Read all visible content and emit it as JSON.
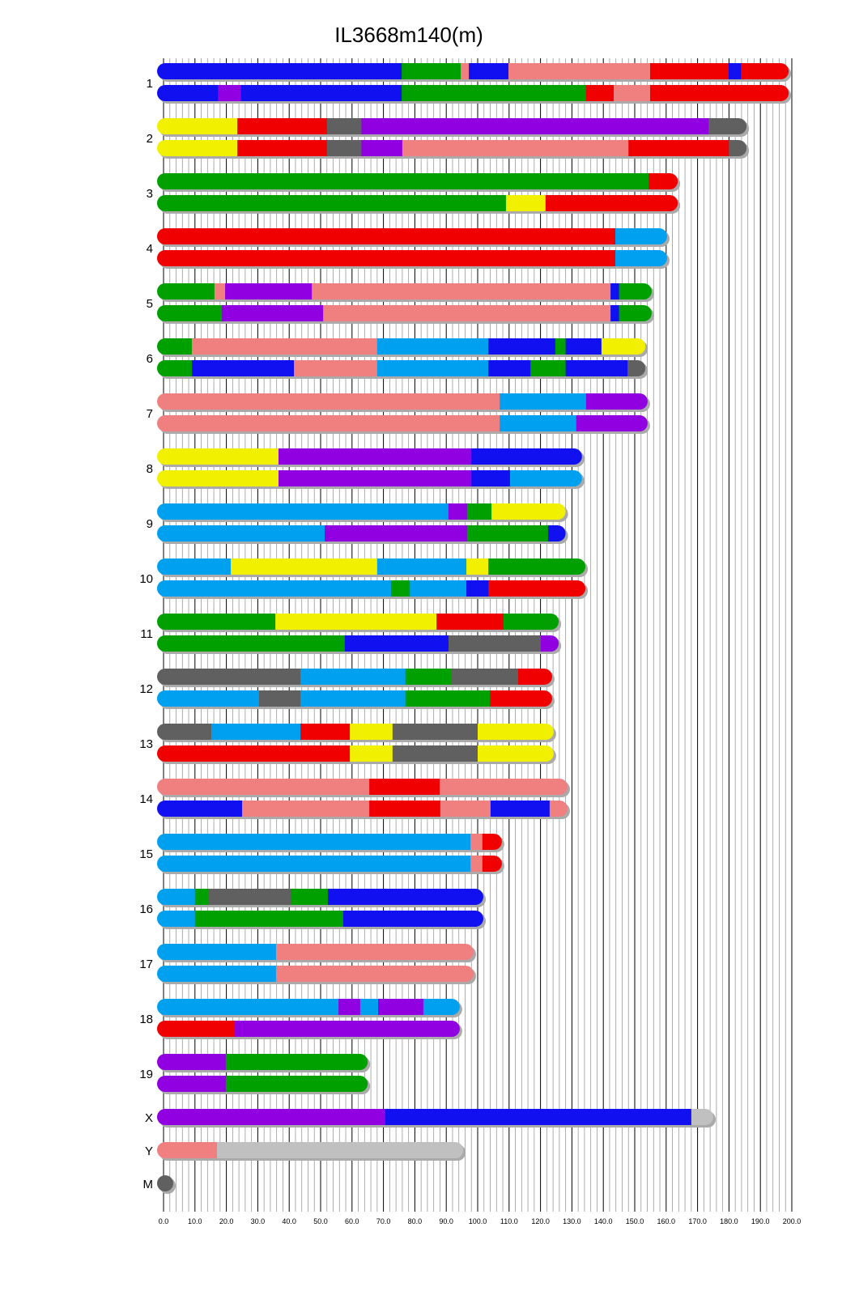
{
  "title": "IL3668m140(m)",
  "chart_data": {
    "type": "chromosome-painting",
    "title": "IL3668m140(m)",
    "xlabel": "",
    "ylabel": "",
    "xlim": [
      0,
      200
    ],
    "x_ticks": [
      "0.0",
      "10.0",
      "20.0",
      "30.0",
      "40.0",
      "50.0",
      "60.0",
      "70.0",
      "80.0",
      "90.0",
      "100.0",
      "110.0",
      "120.0",
      "130.0",
      "140.0",
      "150.0",
      "160.0",
      "170.0",
      "180.0",
      "190.0",
      "200.0"
    ],
    "colors": {
      "blue": "#1010f0",
      "green": "#00a000",
      "salmon": "#f08080",
      "red": "#f00000",
      "purple": "#9000e0",
      "gray": "#606060",
      "yellow": "#f0f000",
      "sky": "#00a0f0",
      "lightgray": "#c0c0c0"
    },
    "chromosomes": [
      {
        "name": "1",
        "rows": [
          [
            [
              75.8,
              "blue"
            ],
            [
              94.6,
              "green"
            ],
            [
              97.2,
              "salmon"
            ],
            [
              109.8,
              "blue"
            ],
            [
              154.9,
              "salmon"
            ],
            [
              179.9,
              "red"
            ],
            [
              183.8,
              "blue"
            ],
            [
              199,
              "red"
            ]
          ],
          [
            [
              17.3,
              "blue"
            ],
            [
              24.7,
              "purple"
            ],
            [
              75.8,
              "blue"
            ],
            [
              134.5,
              "green"
            ],
            [
              143.3,
              "red"
            ],
            [
              154.9,
              "salmon"
            ],
            [
              199,
              "red"
            ]
          ]
        ]
      },
      {
        "name": "2",
        "rows": [
          [
            [
              23.5,
              "yellow"
            ],
            [
              52,
              "red"
            ],
            [
              63,
              "gray"
            ],
            [
              173.5,
              "purple"
            ],
            [
              185.6,
              "gray"
            ]
          ],
          [
            [
              23.5,
              "yellow"
            ],
            [
              52,
              "red"
            ],
            [
              63,
              "gray"
            ],
            [
              76,
              "purple"
            ],
            [
              148,
              "salmon"
            ],
            [
              180,
              "red"
            ],
            [
              185.6,
              "gray"
            ]
          ]
        ]
      },
      {
        "name": "3",
        "rows": [
          [
            [
              154.4,
              "green"
            ],
            [
              163.7,
              "red"
            ]
          ],
          [
            [
              109,
              "green"
            ],
            [
              121.6,
              "yellow"
            ],
            [
              163.7,
              "red"
            ]
          ]
        ]
      },
      {
        "name": "4",
        "rows": [
          [
            [
              143.8,
              "red"
            ],
            [
              160.3,
              "sky"
            ]
          ],
          [
            [
              143.8,
              "red"
            ],
            [
              160.3,
              "sky"
            ]
          ]
        ]
      },
      {
        "name": "5",
        "rows": [
          [
            [
              16.2,
              "green"
            ],
            [
              19.6,
              "salmon"
            ],
            [
              47.2,
              "purple"
            ],
            [
              142.3,
              "salmon"
            ],
            [
              145,
              "blue"
            ],
            [
              155.4,
              "green"
            ]
          ],
          [
            [
              18.6,
              "green"
            ],
            [
              50.8,
              "purple"
            ],
            [
              142.3,
              "salmon"
            ],
            [
              145,
              "blue"
            ],
            [
              155.4,
              "green"
            ]
          ]
        ]
      },
      {
        "name": "6",
        "rows": [
          [
            [
              9,
              "green"
            ],
            [
              68,
              "salmon"
            ],
            [
              103.4,
              "sky"
            ],
            [
              124.7,
              "blue"
            ],
            [
              128,
              "green"
            ],
            [
              139.4,
              "blue"
            ],
            [
              153.4,
              "yellow"
            ]
          ],
          [
            [
              9,
              "green"
            ],
            [
              41.5,
              "blue"
            ],
            [
              68,
              "salmon"
            ],
            [
              103.4,
              "sky"
            ],
            [
              116.8,
              "blue"
            ],
            [
              128,
              "green"
            ],
            [
              147.7,
              "blue"
            ],
            [
              153.4,
              "gray"
            ]
          ]
        ]
      },
      {
        "name": "7",
        "rows": [
          [
            [
              107,
              "salmon"
            ],
            [
              134.5,
              "sky"
            ],
            [
              154.1,
              "purple"
            ]
          ],
          [
            [
              107,
              "salmon"
            ],
            [
              131.4,
              "sky"
            ],
            [
              154.1,
              "purple"
            ]
          ]
        ]
      },
      {
        "name": "8",
        "rows": [
          [
            [
              36.6,
              "yellow"
            ],
            [
              98,
              "purple"
            ],
            [
              133.2,
              "blue"
            ]
          ],
          [
            [
              36.6,
              "yellow"
            ],
            [
              98,
              "purple"
            ],
            [
              110.3,
              "blue"
            ],
            [
              133.2,
              "sky"
            ]
          ]
        ]
      },
      {
        "name": "9",
        "rows": [
          [
            [
              90.7,
              "sky"
            ],
            [
              96.6,
              "purple"
            ],
            [
              104.4,
              "green"
            ],
            [
              128,
              "yellow"
            ]
          ],
          [
            [
              51.3,
              "sky"
            ],
            [
              96.6,
              "purple"
            ],
            [
              122.4,
              "green"
            ],
            [
              128,
              "blue"
            ]
          ]
        ]
      },
      {
        "name": "10",
        "rows": [
          [
            [
              21.4,
              "sky"
            ],
            [
              68,
              "yellow"
            ],
            [
              96.4,
              "sky"
            ],
            [
              103.4,
              "yellow"
            ],
            [
              134.3,
              "green"
            ]
          ],
          [
            [
              72.4,
              "sky"
            ],
            [
              78.4,
              "green"
            ],
            [
              96.4,
              "sky"
            ],
            [
              103.4,
              "blue"
            ],
            [
              134.3,
              "red"
            ]
          ]
        ]
      },
      {
        "name": "11",
        "rows": [
          [
            [
              35.6,
              "green"
            ],
            [
              86.9,
              "yellow"
            ],
            [
              108.2,
              "red"
            ],
            [
              125.8,
              "green"
            ]
          ],
          [
            [
              57.7,
              "green"
            ],
            [
              90.7,
              "blue"
            ],
            [
              120.1,
              "gray"
            ],
            [
              125.8,
              "purple"
            ]
          ]
        ]
      },
      {
        "name": "12",
        "rows": [
          [
            [
              43.6,
              "gray"
            ],
            [
              77,
              "sky"
            ],
            [
              91.5,
              "green"
            ],
            [
              112.9,
              "gray"
            ],
            [
              123.7,
              "red"
            ]
          ],
          [
            [
              30.4,
              "sky"
            ],
            [
              43.6,
              "gray"
            ],
            [
              77,
              "sky"
            ],
            [
              103.9,
              "green"
            ],
            [
              123.7,
              "red"
            ]
          ]
        ]
      },
      {
        "name": "13",
        "rows": [
          [
            [
              15.2,
              "gray"
            ],
            [
              43.6,
              "sky"
            ],
            [
              59.3,
              "red"
            ],
            [
              72.9,
              "yellow"
            ],
            [
              100,
              "gray"
            ],
            [
              124.2,
              "yellow"
            ]
          ],
          [
            [
              59.3,
              "red"
            ],
            [
              72.9,
              "yellow"
            ],
            [
              100,
              "gray"
            ],
            [
              124.2,
              "yellow"
            ]
          ]
        ]
      },
      {
        "name": "14",
        "rows": [
          [
            [
              65.5,
              "salmon"
            ],
            [
              87.9,
              "red"
            ],
            [
              128.6,
              "salmon"
            ]
          ],
          [
            [
              25,
              "blue"
            ],
            [
              65.5,
              "salmon"
            ],
            [
              88.1,
              "red"
            ],
            [
              104.1,
              "salmon"
            ],
            [
              122.9,
              "blue"
            ],
            [
              128.6,
              "salmon"
            ]
          ]
        ]
      },
      {
        "name": "15",
        "rows": [
          [
            [
              97.7,
              "sky"
            ],
            [
              101.5,
              "salmon"
            ],
            [
              107.7,
              "red"
            ]
          ],
          [
            [
              97.7,
              "sky"
            ],
            [
              101.5,
              "salmon"
            ],
            [
              107.7,
              "red"
            ]
          ]
        ]
      },
      {
        "name": "16",
        "rows": [
          [
            [
              10,
              "sky"
            ],
            [
              14.4,
              "green"
            ],
            [
              40.5,
              "gray"
            ],
            [
              52.3,
              "green"
            ],
            [
              101.8,
              "blue"
            ]
          ],
          [
            [
              10,
              "sky"
            ],
            [
              57.2,
              "green"
            ],
            [
              101.8,
              "blue"
            ]
          ]
        ]
      },
      {
        "name": "17",
        "rows": [
          [
            [
              35.8,
              "sky"
            ],
            [
              98.7,
              "salmon"
            ]
          ],
          [
            [
              35.8,
              "sky"
            ],
            [
              98.7,
              "salmon"
            ]
          ]
        ]
      },
      {
        "name": "18",
        "rows": [
          [
            [
              55.7,
              "sky"
            ],
            [
              62.6,
              "purple"
            ],
            [
              68.3,
              "sky"
            ],
            [
              82.7,
              "purple"
            ],
            [
              94.3,
              "sky"
            ]
          ],
          [
            [
              22.7,
              "red"
            ],
            [
              94.3,
              "purple"
            ]
          ]
        ]
      },
      {
        "name": "19",
        "rows": [
          [
            [
              19.8,
              "purple"
            ],
            [
              65,
              "green"
            ]
          ],
          [
            [
              19.8,
              "purple"
            ],
            [
              65,
              "green"
            ]
          ]
        ]
      },
      {
        "name": "X",
        "rows": [
          [
            [
              70.6,
              "purple"
            ],
            [
              168,
              "blue"
            ],
            [
              175,
              "lightgray"
            ]
          ]
        ]
      },
      {
        "name": "Y",
        "rows": [
          [
            [
              17,
              "salmon"
            ],
            [
              95.4,
              "lightgray"
            ]
          ]
        ]
      },
      {
        "name": "M",
        "rows": [
          [
            [
              0.016,
              "gray"
            ]
          ]
        ]
      }
    ]
  }
}
